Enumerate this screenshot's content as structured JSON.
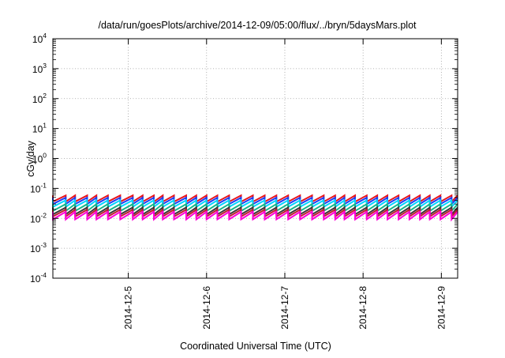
{
  "chart_data": {
    "type": "line",
    "title": "/data/run/goesPlots/archive/2014-12-09/05:00/flux/../bryn/5daysMars.plot",
    "xlabel": "Coordinated Universal Time (UTC)",
    "ylabel": "cGy/day",
    "y_scale": "log",
    "ylim": [
      0.0001,
      10000
    ],
    "y_ticks": [
      {
        "base": "10",
        "exp": "4"
      },
      {
        "base": "10",
        "exp": "3"
      },
      {
        "base": "10",
        "exp": "2"
      },
      {
        "base": "10",
        "exp": "1"
      },
      {
        "base": "10",
        "exp": "0"
      },
      {
        "base": "10",
        "exp": "-1"
      },
      {
        "base": "10",
        "exp": "-2"
      },
      {
        "base": "10",
        "exp": "-3"
      },
      {
        "base": "10",
        "exp": "-4"
      }
    ],
    "xlim": [
      "2014-12-04 00:52",
      "2014-12-09 05:00"
    ],
    "x_ticks": [
      "2014-12-5",
      "2014-12-6",
      "2014-12-7",
      "2014-12-8",
      "2014-12-9"
    ],
    "grid": true,
    "sawtooth_low_points_x": [
      "2014-12-04 00:52",
      "2014-12-04 04:48",
      "2014-12-04 07:42",
      "2014-12-04 11:24",
      "2014-12-04 14:13",
      "2014-12-04 17:46",
      "2014-12-04 21:32",
      "2014-12-05 01:23",
      "2014-12-05 04:24",
      "2014-12-05 07:51",
      "2014-12-05 10:35",
      "2014-12-05 14:00",
      "2014-12-05 17:46",
      "2014-12-05 20:51",
      "2014-12-06 00:00",
      "2014-12-06 03:19",
      "2014-12-06 06:56",
      "2014-12-06 10:35",
      "2014-12-06 14:13",
      "2014-12-06 17:50",
      "2014-12-06 21:25",
      "2014-12-07 01:02",
      "2014-12-07 04:41",
      "2014-12-07 08:21",
      "2014-12-07 11:56",
      "2014-12-07 15:26",
      "2014-12-07 18:18",
      "2014-12-07 21:32",
      "2014-12-08 01:08",
      "2014-12-08 04:20",
      "2014-12-08 07:28",
      "2014-12-08 10:53",
      "2014-12-08 14:13",
      "2014-12-08 17:26",
      "2014-12-08 20:28",
      "2014-12-08 23:43",
      "2014-12-09 03:08"
    ],
    "series": [
      {
        "color": "#e8141c",
        "low": 0.036,
        "high": 0.058
      },
      {
        "color": "#1e3df2",
        "low": 0.03,
        "high": 0.049
      },
      {
        "color": "#00d4ff",
        "low": 0.024,
        "high": 0.04
      },
      {
        "color": "#17b78a",
        "low": 0.0175,
        "high": 0.03
      },
      {
        "color": "#3a3a3a",
        "low": 0.0135,
        "high": 0.023
      },
      {
        "color": "#c01a2e",
        "low": 0.0115,
        "high": 0.0195
      },
      {
        "color": "#ff00d8",
        "low": 0.0092,
        "high": 0.0165
      }
    ]
  }
}
